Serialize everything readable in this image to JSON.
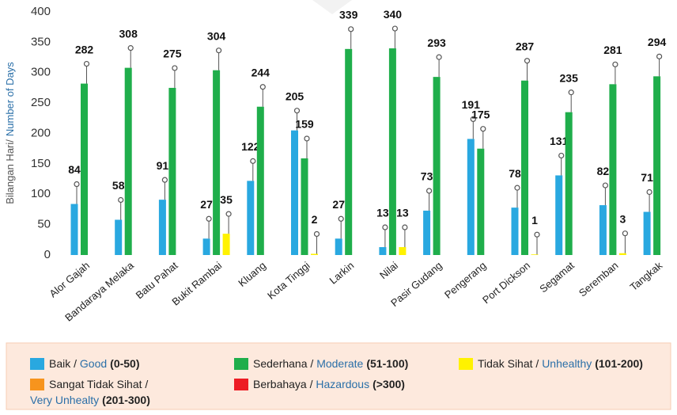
{
  "chart_data": {
    "type": "bar",
    "y_label_bm": "Bilangan Hari/",
    "y_label_en": "Number of Days",
    "categories": [
      "Alor Gajah",
      "Bandaraya Melaka",
      "Batu Pahat",
      "Bukit Rambai",
      "Kluang",
      "Kota Tinggi",
      "Larkin",
      "Nilai",
      "Pasir Gudang",
      "Pengerang",
      "Port Dickson",
      "Segamat",
      "Seremban",
      "Tangkak"
    ],
    "series": [
      {
        "name_bm": "Baik",
        "name_en": "Good",
        "range": "(0-50)",
        "color": "#29a8e0",
        "values": [
          84,
          58,
          91,
          27,
          122,
          205,
          27,
          13,
          73,
          191,
          78,
          131,
          82,
          71
        ]
      },
      {
        "name_bm": "Sederhana",
        "name_en": "Moderate",
        "range": "(51-100)",
        "color": "#1fae4b",
        "values": [
          282,
          308,
          275,
          304,
          244,
          159,
          339,
          340,
          293,
          175,
          287,
          235,
          281,
          294
        ]
      },
      {
        "name_bm": "Tidak Sihat",
        "name_en": "Unhealthy",
        "range": "(101-200)",
        "color": "#fff200",
        "values": [
          null,
          null,
          null,
          35,
          null,
          2,
          null,
          13,
          null,
          null,
          1,
          null,
          3,
          null
        ]
      },
      {
        "name_bm": "Sangat Tidak Sihat",
        "name_en": "Very Unhealty",
        "range": "(201-300)",
        "color": "#f7941d",
        "values": [
          null,
          null,
          null,
          null,
          null,
          null,
          null,
          null,
          null,
          null,
          null,
          null,
          null,
          null
        ]
      },
      {
        "name_bm": "Berbahaya",
        "name_en": "Hazardous",
        "range": "(>300)",
        "color": "#ed1c24",
        "values": [
          null,
          null,
          null,
          null,
          null,
          null,
          null,
          null,
          null,
          null,
          null,
          null,
          null,
          null
        ]
      }
    ],
    "ylim": [
      0,
      400
    ],
    "yticks": [
      0,
      50,
      100,
      150,
      200,
      250,
      300,
      350,
      400
    ],
    "grid": false
  }
}
